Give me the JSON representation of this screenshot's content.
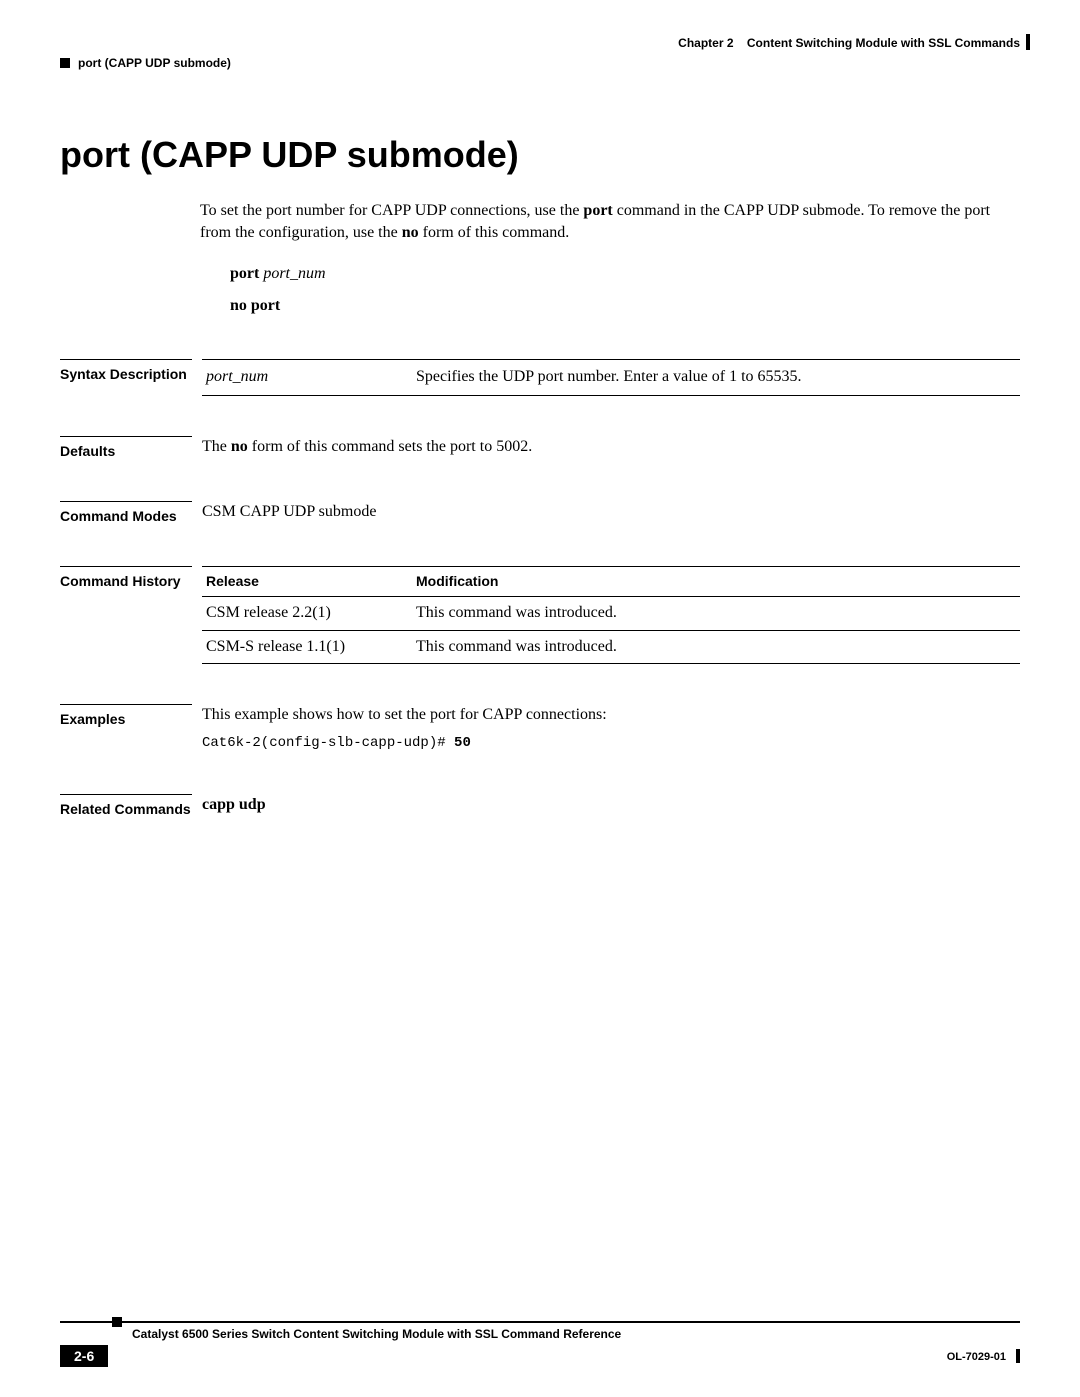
{
  "header": {
    "chapter_label": "Chapter 2",
    "chapter_title": "Content Switching Module with SSL Commands",
    "running_head": "port (CAPP UDP submode)"
  },
  "title": "port (CAPP UDP submode)",
  "intro": {
    "line1_pre": "To set the port number for CAPP UDP connections, use the ",
    "line1_bold": "port",
    "line1_post": " command in the CAPP UDP submode. To remove the port from the configuration, use the ",
    "line1_bold2": "no",
    "line1_post2": " form of this command."
  },
  "syntax": {
    "cmd1_bold": "port",
    "cmd1_arg": "port_num",
    "cmd2": "no port"
  },
  "syntax_description": {
    "label": "Syntax Description",
    "arg": "port_num",
    "desc": "Specifies the UDP port number. Enter a value of 1 to 65535."
  },
  "defaults": {
    "label": "Defaults",
    "pre": "The ",
    "bold": "no",
    "post": " form of this command sets the port to 5002."
  },
  "command_modes": {
    "label": "Command Modes",
    "text": "CSM CAPP UDP submode"
  },
  "command_history": {
    "label": "Command History",
    "col1": "Release",
    "col2": "Modification",
    "rows": [
      {
        "release": "CSM release 2.2(1)",
        "mod": "This command was introduced."
      },
      {
        "release": "CSM-S release 1.1(1)",
        "mod": "This command was introduced."
      }
    ]
  },
  "examples": {
    "label": "Examples",
    "text": "This example shows how to set the port for CAPP connections:",
    "code_prompt": "Cat6k-2(config-slb-capp-udp)# ",
    "code_input": "50"
  },
  "related": {
    "label": "Related Commands",
    "text": "capp udp"
  },
  "footer": {
    "book_title": "Catalyst 6500 Series Switch Content Switching Module with SSL Command Reference",
    "page_num": "2-6",
    "doc_id": "OL-7029-01"
  }
}
